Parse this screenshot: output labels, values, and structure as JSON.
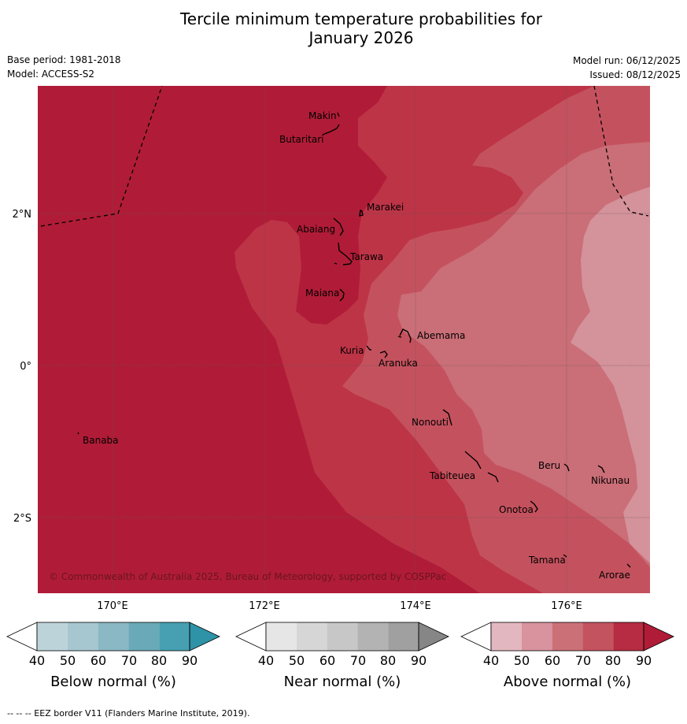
{
  "title_line1": "Tercile minimum temperature probabilities for",
  "title_line2": "January 2026",
  "base_period": "Base period: 1981-2018",
  "model": "Model: ACCESS-S2",
  "model_run": "Model run: 06/12/2025",
  "issued": "Issued: 08/12/2025",
  "copyright": "© Commonwealth of Australia 2025, Bureau of Meteorology, supported by COSPPac",
  "axes": {
    "lat_labels": [
      "2°N",
      "0°",
      "2°S"
    ],
    "lon_labels": [
      "170°E",
      "172°E",
      "174°E",
      "176°E"
    ]
  },
  "places": [
    {
      "name": "Makin"
    },
    {
      "name": "Butaritari"
    },
    {
      "name": "Marakei"
    },
    {
      "name": "Abaiang"
    },
    {
      "name": "Tarawa"
    },
    {
      "name": "Maiana"
    },
    {
      "name": "Abemama"
    },
    {
      "name": "Kuria"
    },
    {
      "name": "Aranuka"
    },
    {
      "name": "Banaba"
    },
    {
      "name": "Nonouti"
    },
    {
      "name": "Beru"
    },
    {
      "name": "Tabiteuea"
    },
    {
      "name": "Nikunau"
    },
    {
      "name": "Onotoa"
    },
    {
      "name": "Tamana"
    },
    {
      "name": "Arorae"
    }
  ],
  "colorbars": [
    {
      "title": "Below normal (%)",
      "ticks": [
        "40",
        "50",
        "60",
        "70",
        "80",
        "90"
      ],
      "colors": [
        "#ffffff",
        "#bdd3da",
        "#a6c7cf",
        "#8ab8c4",
        "#6aa9b8",
        "#46a0b1",
        "#2e93a7"
      ]
    },
    {
      "title": "Near normal (%)",
      "ticks": [
        "40",
        "50",
        "60",
        "70",
        "80",
        "90"
      ],
      "colors": [
        "#ffffff",
        "#e6e6e6",
        "#d6d6d6",
        "#c7c7c7",
        "#b3b3b3",
        "#a0a0a0",
        "#868686"
      ]
    },
    {
      "title": "Above normal (%)",
      "ticks": [
        "40",
        "50",
        "60",
        "70",
        "80",
        "90"
      ],
      "colors": [
        "#ffffff",
        "#e2b7bf",
        "#d9939e",
        "#cc7078",
        "#c3535f",
        "#b72c42",
        "#b01c37"
      ]
    }
  ],
  "footer": "--  --  -- EEZ border V11 (Flanders Marine Institute, 2019).",
  "legend_probability_levels": {
    "darkest_above": "80-90",
    "lightest_above": "50-60"
  }
}
